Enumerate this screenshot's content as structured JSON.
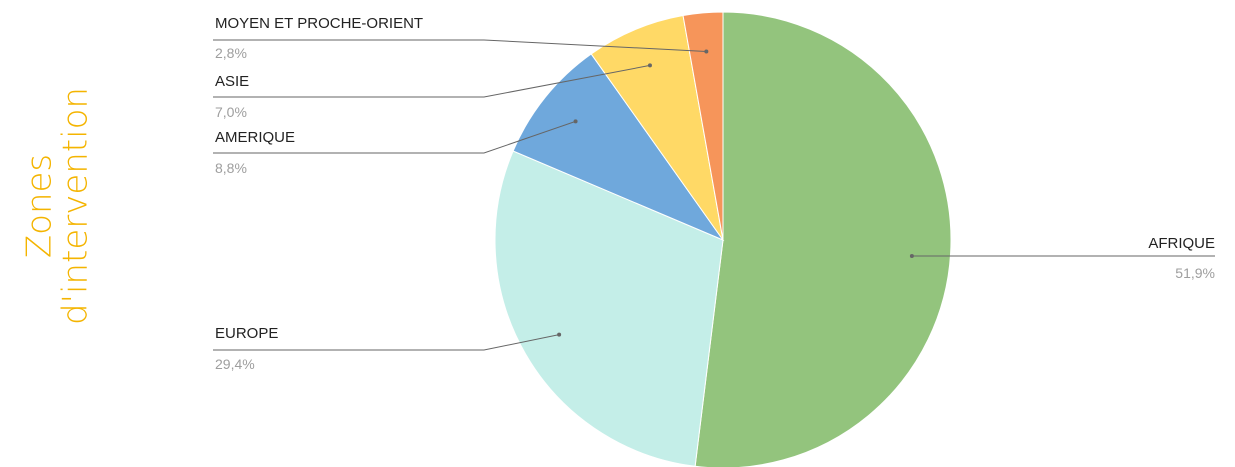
{
  "side_title": {
    "line1": "Zones",
    "line2": "d'intervention",
    "color": "#f4b400"
  },
  "chart_data": {
    "type": "pie",
    "title": "",
    "slices": [
      {
        "label": "AFRIQUE",
        "value": 51.9,
        "display": "51,9%",
        "color": "#93c47d",
        "label_side": "right"
      },
      {
        "label": "EUROPE",
        "value": 29.4,
        "display": "29,4%",
        "color": "#c4eee8",
        "label_side": "left"
      },
      {
        "label": "AMERIQUE",
        "value": 8.8,
        "display": "8,8%",
        "color": "#6fa8dc",
        "label_side": "left"
      },
      {
        "label": "ASIE",
        "value": 7.0,
        "display": "7,0%",
        "color": "#ffd966",
        "label_side": "left"
      },
      {
        "label": "MOYEN ET PROCHE-ORIENT",
        "value": 2.8,
        "display": "2,8%",
        "color": "#f6955a",
        "label_side": "left"
      }
    ],
    "legend": "none",
    "start_angle": "12 o'clock, clockwise"
  }
}
